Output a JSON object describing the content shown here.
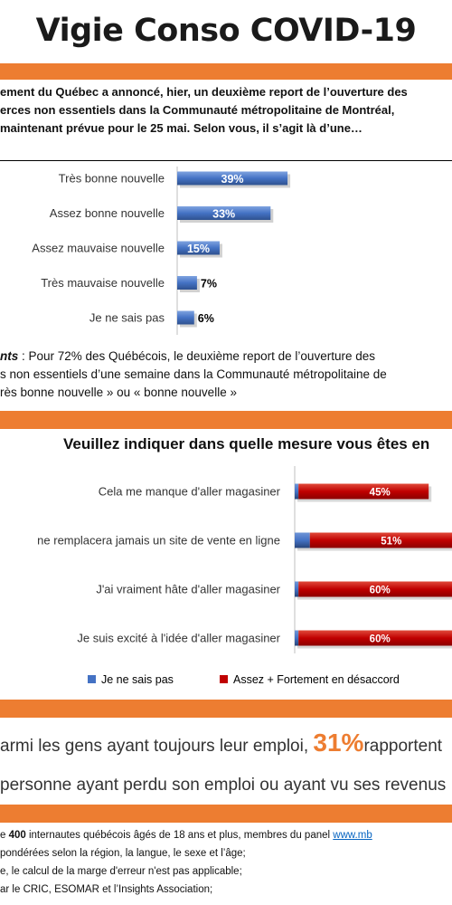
{
  "header": {
    "title": "Vigie Conso COVID-19"
  },
  "section1": {
    "question_lines": [
      "ement du Québec a annoncé, hier, un deuxième report de l’ouverture des",
      "erces non essentiels dans la Communauté métropolitaine de Montréal,",
      "maintenant prévue pour le 25 mai. Selon vous, il s’agit là d’une…"
    ],
    "summary": {
      "label": "nts",
      "line1_rest": " : Pour 72% des Québécois, le deuxième report de l’ouverture des",
      "line2": "s non essentiels d’une semaine dans la Communauté métropolitaine de",
      "line3": "rès bonne nouvelle » ou « bonne nouvelle »"
    }
  },
  "chart_data": [
    {
      "type": "bar",
      "orientation": "horizontal",
      "categories": [
        "Très bonne nouvelle",
        "Assez bonne nouvelle",
        "Assez mauvaise nouvelle",
        "Très mauvaise nouvelle",
        "Je ne sais pas"
      ],
      "values": [
        39,
        33,
        15,
        7,
        6
      ],
      "value_labels": [
        "39%",
        "33%",
        "15%",
        "7%",
        "6%"
      ],
      "colors": {
        "bar": "#4472c4",
        "bar_dark": "#2f528f"
      }
    },
    {
      "type": "bar",
      "orientation": "horizontal",
      "stacked": true,
      "title": "Veuillez indiquer dans quelle mesure vous êtes en",
      "categories": [
        "Cela me manque d'aller magasiner",
        "ne remplacera jamais un site de vente en ligne",
        "J'ai vraiment hâte d'aller magasiner",
        "Je suis excité à l'idée d'aller magasiner"
      ],
      "series": [
        {
          "name": "Je ne sais pas",
          "values": [
            1,
            4,
            1,
            1
          ],
          "color": "#4472c4"
        },
        {
          "name": "Assez + Fortement en désaccord",
          "values": [
            45,
            51,
            60,
            60
          ],
          "value_labels": [
            "45%",
            "51%",
            "60%",
            "60%"
          ],
          "color": "#c00000"
        }
      ],
      "legend": "bottom"
    }
  ],
  "stats": {
    "line1_prefix": "armi les gens ayant toujours leur emploi, ",
    "line1_value": "31%",
    "line1_suffix": "rapportent",
    "line2": "personne ayant perdu son emploi ou ayant vu ses revenus"
  },
  "footer": {
    "line1_prefix": "e ",
    "line1_bold": "400",
    "line1_rest": " internautes québécois âgés de 18 ans et plus, membres du panel ",
    "line1_link": "www.mb",
    "line2": "pondérées selon la région, la langue, le sexe et l’âge;",
    "line3": "e, le calcul de la marge d'erreur n'est pas applicable;",
    "line4": "ar le CRIC, ESOMAR et l’Insights Association;"
  },
  "colors": {
    "accent": "#ed7d31",
    "blue": "#4472c4",
    "red": "#c00000"
  }
}
